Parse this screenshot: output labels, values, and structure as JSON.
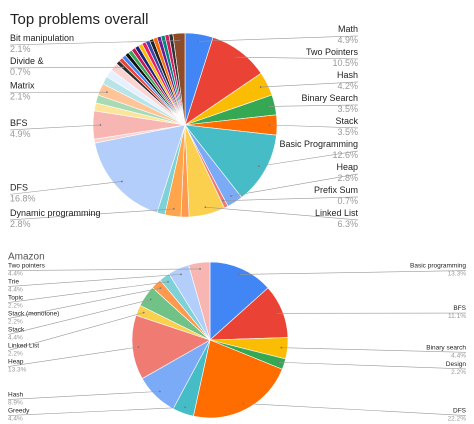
{
  "chart_data": [
    {
      "type": "pie",
      "title": "Top problems overall",
      "categories": [
        "Math",
        "Two Pointers",
        "Hash",
        "Binary Search",
        "Stack",
        "Basic Programming",
        "Heap",
        "Prefix Sum",
        "Linked List",
        null,
        "Dynamic programming",
        null,
        "DFS",
        null,
        "BFS",
        null,
        null,
        "Matrix",
        null,
        null,
        null,
        "Divide &",
        null,
        null,
        null,
        null,
        null,
        null,
        null,
        null,
        null,
        null,
        null,
        null,
        null,
        null,
        null,
        "Bit manipulation"
      ],
      "values": [
        4.9,
        10.5,
        4.2,
        3.5,
        3.5,
        12.6,
        2.8,
        0.7,
        6.3,
        1.4,
        2.8,
        1.4,
        16.8,
        0.7,
        4.9,
        1.4,
        1.4,
        2.1,
        1.4,
        1.4,
        1.4,
        0.7,
        0.7,
        0.7,
        0.7,
        0.7,
        0.7,
        0.7,
        0.7,
        0.7,
        0.7,
        0.7,
        0.7,
        0.7,
        0.7,
        0.7,
        0.7,
        2.1
      ],
      "value_labels": [
        "4.9%",
        "10.5%",
        "4.2%",
        "3.5%",
        "3.5%",
        "12.6%",
        "2.8%",
        "0.7%",
        "6.3%",
        null,
        "2.8%",
        null,
        "16.8%",
        null,
        "4.9%",
        null,
        null,
        "2.1%",
        null,
        null,
        null,
        "0.7%",
        null,
        null,
        null,
        null,
        null,
        null,
        null,
        null,
        null,
        null,
        null,
        null,
        null,
        null,
        null,
        "2.1%"
      ],
      "colors": [
        "#4285f4",
        "#ea4335",
        "#fbbc04",
        "#34a853",
        "#ff6d01",
        "#46bdc6",
        "#7baaf7",
        "#f07b72",
        "#fcd04f",
        "#ff994d",
        "#ffa64d",
        "#7ed1d7",
        "#b3cefb",
        "#f9d2cf",
        "#f7b6b1",
        "#fde49b",
        "#a8dbb5",
        "#ffc599",
        "#b7e4e8",
        "#e6f0ff",
        "#fbd4d1",
        "#2b2b2b",
        "#ea4335",
        "#4285f4",
        "#111111",
        "#34a853",
        "#c2185b",
        "#1a237e",
        "#fbbc04",
        "#e91e63",
        "#3949ab",
        "#212121",
        "#ff6d01",
        "#6a1b9a",
        "#00897b",
        "#d81b60",
        "#333333",
        "#8d4b2a"
      ]
    },
    {
      "type": "pie",
      "title": "Amazon",
      "categories": [
        "Basic programming",
        "BFS",
        "Binary search",
        "Design",
        "DFS",
        "Greedy",
        "Hash",
        "Heap",
        "Linked List",
        "Stack",
        "Stack (monotone)",
        "Topic",
        "Trie",
        "Two pointers"
      ],
      "values": [
        13.3,
        11.1,
        4.4,
        2.2,
        22.2,
        4.4,
        8.9,
        13.3,
        2.2,
        4.4,
        2.2,
        2.2,
        4.4,
        4.4
      ],
      "value_labels": [
        "13.3%",
        "11.1%",
        "4.4%",
        "2.2%",
        "22.2%",
        "4.4%",
        "8.9%",
        "13.3%",
        "2.2%",
        "4.4%",
        "2.2%",
        "2.2%",
        "4.4%",
        "4.4%"
      ],
      "colors": [
        "#4285f4",
        "#ea4335",
        "#fbbc04",
        "#34a853",
        "#ff6d01",
        "#46bdc6",
        "#7baaf7",
        "#f07b72",
        "#fcd04f",
        "#71c287",
        "#ff994d",
        "#7ed1d7",
        "#b3cefb",
        "#f7b6b1"
      ]
    }
  ]
}
